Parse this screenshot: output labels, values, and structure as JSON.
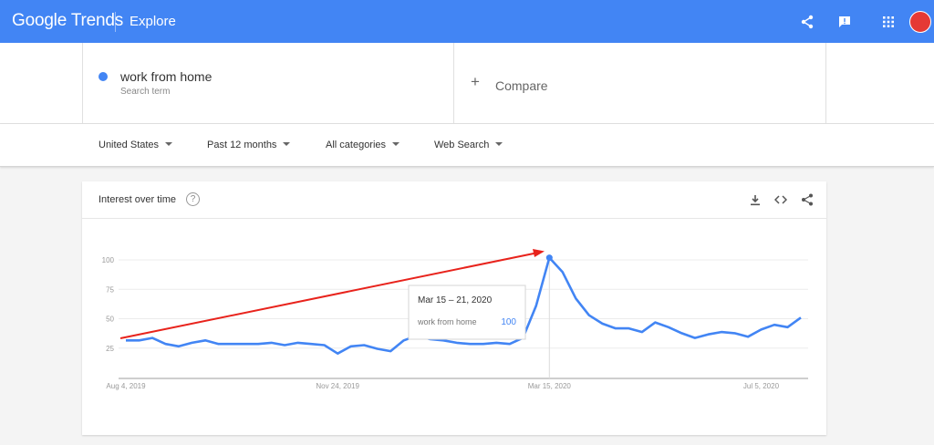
{
  "header": {
    "logo_google": "Google",
    "logo_trends": "Trends",
    "explore": "Explore",
    "icons": [
      "share-icon",
      "feedback-icon",
      "apps-icon"
    ]
  },
  "search": {
    "term": "work from home",
    "term_sub": "Search term",
    "term_color": "#4285f4",
    "compare_plus": "+",
    "compare_label": "Compare"
  },
  "filters": {
    "region": "United States",
    "period": "Past 12 months",
    "category": "All categories",
    "source": "Web Search"
  },
  "card": {
    "title": "Interest over time",
    "help": "?"
  },
  "chart_data": {
    "type": "line",
    "series": [
      {
        "name": "work from home",
        "color": "#4285f4",
        "values": [
          31,
          31,
          33,
          28,
          26,
          29,
          31,
          28,
          28,
          28,
          28,
          29,
          27,
          29,
          28,
          27,
          20,
          26,
          27,
          24,
          22,
          31,
          35,
          32,
          31,
          29,
          28,
          28,
          29,
          28,
          33,
          60,
          100,
          88,
          66,
          52,
          45,
          41,
          41,
          38,
          46,
          42,
          37,
          33,
          36,
          38,
          37,
          34,
          40,
          44,
          42,
          50
        ]
      }
    ],
    "x_tick_labels": [
      "Aug 4, 2019",
      "Nov 24, 2019",
      "Mar 15, 2020",
      "Jul 5, 2020"
    ],
    "y_tick_labels": [
      "100",
      "75",
      "50",
      "25"
    ],
    "ylim": [
      0,
      100
    ],
    "grid": true,
    "tooltip": {
      "date": "Mar 15 – 21, 2020",
      "term": "work from home",
      "value": "100"
    },
    "annotation_arrow_color": "#e8231c"
  }
}
